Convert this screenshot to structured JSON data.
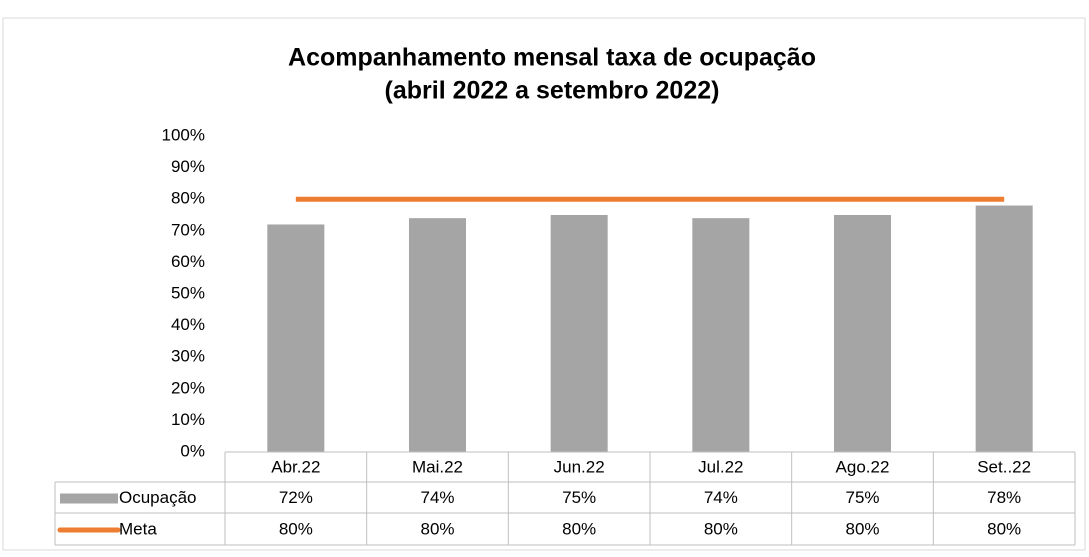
{
  "chart_data": {
    "type": "bar",
    "title": "Acompanhamento mensal taxa de ocupação",
    "subtitle": "(abril 2022 a setembro 2022)",
    "categories": [
      "Abr.22",
      "Mai.22",
      "Jun.22",
      "Jul.22",
      "Ago.22",
      "Set..22"
    ],
    "series": [
      {
        "name": "Ocupação",
        "type": "bar",
        "color": "#a5a5a5",
        "values": [
          72,
          74,
          75,
          74,
          75,
          78
        ],
        "value_labels": [
          "72%",
          "74%",
          "75%",
          "74%",
          "75%",
          "78%"
        ]
      },
      {
        "name": "Meta",
        "type": "line",
        "color": "#ed7d31",
        "values": [
          80,
          80,
          80,
          80,
          80,
          80
        ],
        "value_labels": [
          "80%",
          "80%",
          "80%",
          "80%",
          "80%",
          "80%"
        ]
      }
    ],
    "ylim": [
      0,
      100
    ],
    "yticks": [
      {
        "value": 0,
        "label": "0%"
      },
      {
        "value": 10,
        "label": "10%"
      },
      {
        "value": 20,
        "label": "20%"
      },
      {
        "value": 30,
        "label": "30%"
      },
      {
        "value": 40,
        "label": "40%"
      },
      {
        "value": 50,
        "label": "50%"
      },
      {
        "value": 60,
        "label": "60%"
      },
      {
        "value": 70,
        "label": "70%"
      },
      {
        "value": 80,
        "label": "80%"
      },
      {
        "value": 90,
        "label": "90%"
      },
      {
        "value": 100,
        "label": "100%"
      }
    ],
    "grid": false
  }
}
